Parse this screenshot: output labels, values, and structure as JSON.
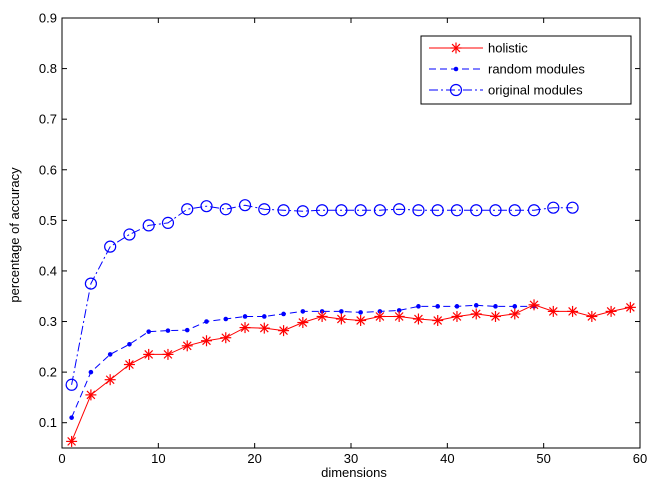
{
  "chart_data": {
    "type": "line",
    "title": "",
    "xlabel": "dimensions",
    "ylabel": "percentage of accuracy",
    "xlim": [
      0,
      60
    ],
    "ylim": [
      0.05,
      0.9
    ],
    "xticks": [
      0,
      10,
      20,
      30,
      40,
      50,
      60
    ],
    "yticks": [
      0.1,
      0.2,
      0.3,
      0.4,
      0.5,
      0.6,
      0.7,
      0.8,
      0.9
    ],
    "xtick_labels": [
      "0",
      "10",
      "20",
      "30",
      "40",
      "50",
      "60"
    ],
    "ytick_labels": [
      "0.1",
      "0.2",
      "0.3",
      "0.4",
      "0.5",
      "0.6",
      "0.7",
      "0.8",
      "0.9"
    ],
    "grid": false,
    "legend_position": "top-right",
    "series": [
      {
        "name": "holistic",
        "color": "#ff0000",
        "marker": "asterisk",
        "line_style": "solid",
        "x": [
          1,
          3,
          5,
          7,
          9,
          11,
          13,
          15,
          17,
          19,
          21,
          23,
          25,
          27,
          29,
          31,
          33,
          35,
          37,
          39,
          41,
          43,
          45,
          47,
          49,
          51,
          53,
          55,
          57,
          59
        ],
        "y": [
          0.063,
          0.155,
          0.185,
          0.215,
          0.235,
          0.235,
          0.252,
          0.262,
          0.268,
          0.288,
          0.287,
          0.282,
          0.298,
          0.31,
          0.305,
          0.302,
          0.31,
          0.31,
          0.305,
          0.302,
          0.31,
          0.315,
          0.31,
          0.315,
          0.333,
          0.32,
          0.32,
          0.31,
          0.32,
          0.328
        ]
      },
      {
        "name": "random modules",
        "color": "#0000ff",
        "marker": "dot",
        "line_style": "dashed",
        "x": [
          1,
          3,
          5,
          7,
          9,
          11,
          13,
          15,
          17,
          19,
          21,
          23,
          25,
          27,
          29,
          31,
          33,
          35,
          37,
          39,
          41,
          43,
          45,
          47,
          49
        ],
        "y": [
          0.11,
          0.2,
          0.235,
          0.255,
          0.28,
          0.282,
          0.283,
          0.3,
          0.305,
          0.31,
          0.31,
          0.315,
          0.32,
          0.32,
          0.32,
          0.318,
          0.32,
          0.322,
          0.33,
          0.33,
          0.33,
          0.332,
          0.33,
          0.33,
          0.33
        ]
      },
      {
        "name": "original modules",
        "color": "#0000ff",
        "marker": "circle",
        "line_style": "dashdot",
        "x": [
          1,
          3,
          5,
          7,
          9,
          11,
          13,
          15,
          17,
          19,
          21,
          23,
          25,
          27,
          29,
          31,
          33,
          35,
          37,
          39,
          41,
          43,
          45,
          47,
          49,
          51,
          53
        ],
        "y": [
          0.175,
          0.375,
          0.448,
          0.472,
          0.49,
          0.495,
          0.522,
          0.528,
          0.522,
          0.53,
          0.522,
          0.52,
          0.518,
          0.52,
          0.52,
          0.52,
          0.52,
          0.522,
          0.52,
          0.52,
          0.52,
          0.52,
          0.52,
          0.52,
          0.52,
          0.525,
          0.525
        ]
      }
    ]
  }
}
